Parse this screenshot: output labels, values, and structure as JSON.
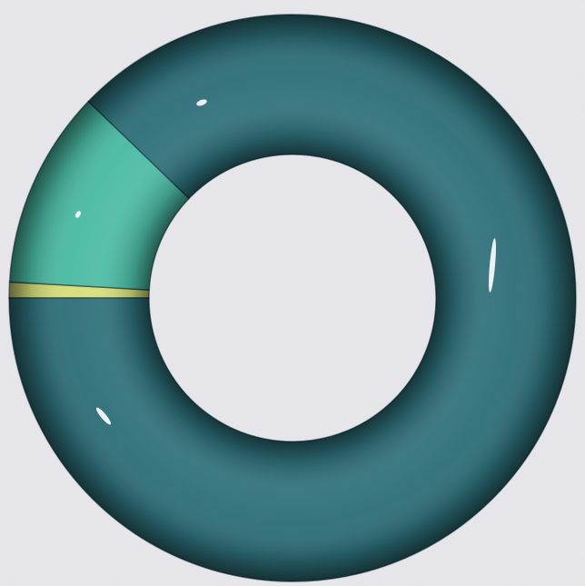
{
  "chart_data": {
    "type": "pie",
    "style": "donut",
    "title": "",
    "labels_shown": false,
    "legend": "none",
    "values": [
      0.9,
      11.3,
      87.8
    ],
    "colors": [
      "#d6de7a",
      "#4bbba4",
      "#2e6f79"
    ],
    "start_angle_deg": 180,
    "direction": "clockwise"
  }
}
